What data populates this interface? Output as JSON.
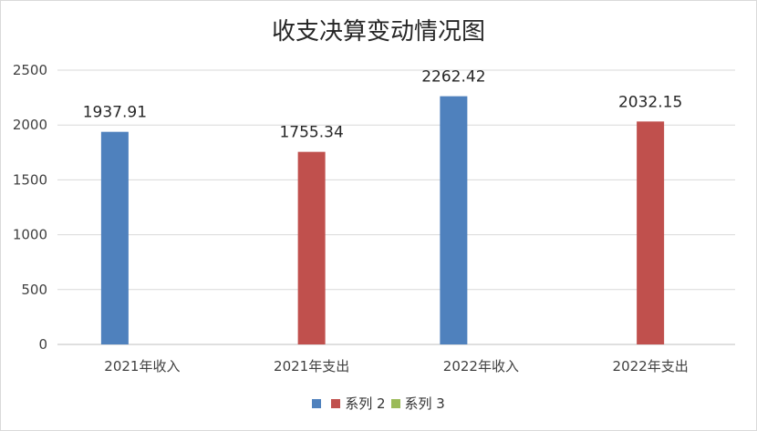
{
  "chart_data": {
    "type": "bar",
    "title": "收支决算变动情况图",
    "categories": [
      "2021年收入",
      "2021年支出",
      "2022年收入",
      "2022年支出"
    ],
    "series": [
      {
        "name": "",
        "color": "#4f81bd",
        "values": [
          1937.91,
          null,
          2262.42,
          null
        ]
      },
      {
        "name": "系列 2",
        "color": "#c0504d",
        "values": [
          null,
          1755.34,
          null,
          2032.15
        ]
      },
      {
        "name": "系列 3",
        "color": "#9bbb59",
        "values": [
          null,
          null,
          null,
          null
        ]
      }
    ],
    "data_labels": [
      "1937.91",
      "1755.34",
      "2262.42",
      "2032.15"
    ],
    "ylim": [
      0,
      2500
    ],
    "yticks": [
      0,
      500,
      1000,
      1500,
      2000,
      2500
    ],
    "grid": true,
    "legend_position": "bottom"
  }
}
